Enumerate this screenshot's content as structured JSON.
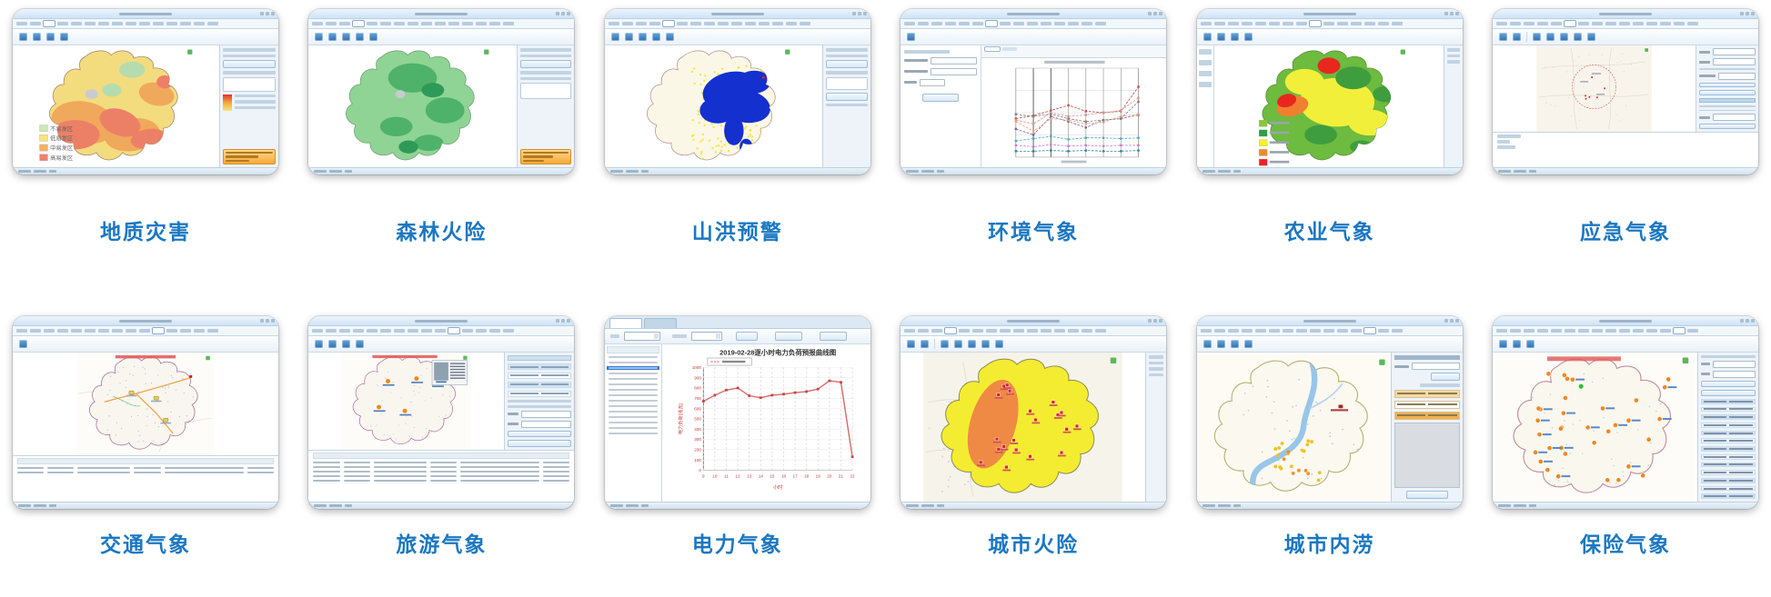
{
  "page": {
    "background": "#ffffff",
    "caption_color": "#1b77c2"
  },
  "cards": [
    {
      "id": "geology",
      "label": "地质灾害",
      "kind": "map-geology",
      "legend": {
        "items": [
          {
            "label": "不易发区",
            "color": "#c9e9b6"
          },
          {
            "label": "低易发区",
            "color": "#f7e37c"
          },
          {
            "label": "中易发区",
            "color": "#f5b061"
          },
          {
            "label": "高易发区",
            "color": "#f07f6d"
          }
        ]
      }
    },
    {
      "id": "forest",
      "label": "森林火险",
      "kind": "map-forest",
      "map_colors": {
        "base": "#8fd494",
        "patches": [
          "#4eb26b",
          "#2e9a58"
        ]
      }
    },
    {
      "id": "flood",
      "label": "山洪预警",
      "kind": "map-flood",
      "map_colors": {
        "base": "#fbf7e6",
        "flood": "#1430cf",
        "speckle": "#f0e83e"
      }
    },
    {
      "id": "env",
      "label": "环境气象",
      "kind": "chart-env"
    },
    {
      "id": "agri",
      "label": "农业气象",
      "kind": "map-agri",
      "legend_colors": [
        "#8cc63e",
        "#2f9e44",
        "#f6f12c",
        "#f08a2c",
        "#ee2222"
      ]
    },
    {
      "id": "emergency",
      "label": "应急气象",
      "kind": "map-emergency",
      "map_colors": {
        "base": "#f8f4ec",
        "circle": "#d06060"
      }
    },
    {
      "id": "traffic",
      "label": "交通气象",
      "kind": "map-traffic",
      "map_colors": {
        "base": "#f9f6ef",
        "road": "#f0a040"
      }
    },
    {
      "id": "tourism",
      "label": "旅游气象",
      "kind": "map-tourism",
      "map_colors": {
        "base": "#f9f6ef",
        "marker": "#f08a22"
      }
    },
    {
      "id": "power",
      "label": "电力气象",
      "kind": "chart-power"
    },
    {
      "id": "cityfire",
      "label": "城市火险",
      "kind": "map-cityfire",
      "map_colors": {
        "base": "#f4ec30",
        "band": "#ef8a44",
        "marker": "#dd2222"
      }
    },
    {
      "id": "waterlog",
      "label": "城市内涝",
      "kind": "map-waterlog",
      "map_colors": {
        "base": "#fbf8ef",
        "river": "#8cc0e8",
        "dots": [
          "#f0c225",
          "#f09030"
        ]
      }
    },
    {
      "id": "insurance",
      "label": "保险气象",
      "kind": "map-insurance",
      "map_colors": {
        "base": "#faf7ee",
        "marker": "#f08822"
      }
    }
  ],
  "chart_data": [
    {
      "id": "power-load",
      "type": "line",
      "title": "2019-02-28逐小时电力负荷预报曲线图",
      "xlabel": "小时",
      "ylabel": "电力负荷(兆瓦)",
      "x": [
        9,
        10,
        11,
        12,
        13,
        14,
        15,
        16,
        17,
        18,
        19,
        20,
        21,
        22
      ],
      "values": [
        670,
        730,
        780,
        800,
        725,
        705,
        730,
        740,
        755,
        765,
        790,
        870,
        855,
        130
      ],
      "ylim": [
        0,
        1000
      ],
      "ytick_step": 100,
      "line_color": "#d66a6a",
      "axis_tick_color": "#cc3333",
      "grid": true,
      "legend_position": "top-left"
    },
    {
      "id": "env-multiseries",
      "type": "line",
      "x": [
        1,
        2,
        3,
        4,
        5,
        6,
        7,
        8
      ],
      "series": [
        {
          "color": "#c0504d",
          "values": [
            52,
            56,
            63,
            70,
            62,
            60,
            62,
            95
          ]
        },
        {
          "color": "#d99694",
          "values": [
            50,
            45,
            60,
            55,
            57,
            60,
            63,
            80
          ]
        },
        {
          "color": "#8064a2",
          "values": [
            38,
            30,
            55,
            48,
            40,
            50,
            52,
            57
          ]
        },
        {
          "color": "#e8a87c",
          "values": [
            48,
            35,
            52,
            50,
            45,
            47,
            55,
            58
          ]
        },
        {
          "color": "#7f7f7f",
          "values": [
            58,
            55,
            58,
            52,
            48,
            50,
            52,
            75
          ]
        },
        {
          "color": "#4bacc6",
          "values": [
            22,
            25,
            28,
            24,
            26,
            26,
            25,
            26
          ]
        },
        {
          "color": "#c97fc9",
          "values": [
            16,
            14,
            17,
            15,
            16,
            15,
            16,
            16
          ]
        },
        {
          "color": "#31859c",
          "values": [
            8,
            8,
            9,
            8,
            9,
            8,
            8,
            9
          ]
        }
      ],
      "ylim": [
        0,
        120
      ],
      "grid": true
    }
  ]
}
